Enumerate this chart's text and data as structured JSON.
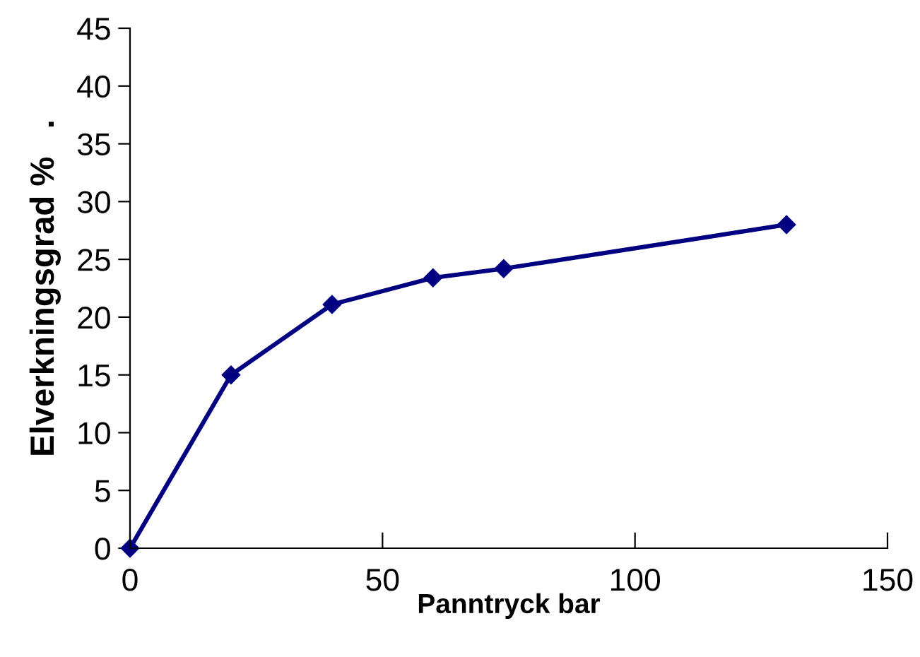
{
  "chart_data": {
    "type": "line",
    "xlabel": "Panntryck bar",
    "ylabel": "Elverkningsgrad %   .",
    "series": [
      {
        "color": "#000080",
        "x": [
          0,
          20,
          40,
          60,
          74,
          130
        ],
        "values": [
          0,
          15,
          21.1,
          23.4,
          24.2,
          28
        ]
      }
    ],
    "xlim": [
      0,
      150
    ],
    "xticks": [
      0,
      50,
      100,
      150
    ],
    "ylim": [
      0,
      45
    ],
    "yticks": [
      0,
      5,
      10,
      15,
      20,
      25,
      30,
      35,
      40,
      45
    ],
    "marker": "diamond",
    "line_style": "solid",
    "grid": false,
    "legend": false
  }
}
